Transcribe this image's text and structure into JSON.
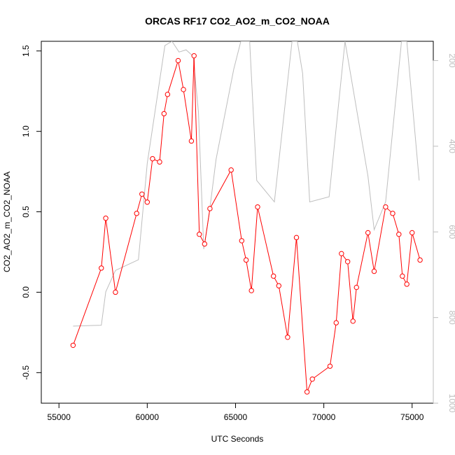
{
  "chart_data": {
    "type": "line",
    "title": "ORCAS RF17 CO2_AO2_m_CO2_NOAA",
    "xlabel": "UTC Seconds",
    "ylabel": "CO2_AO2_m_CO2_NOAA",
    "xlim": [
      54000,
      76200
    ],
    "ylim": [
      -0.69,
      1.56
    ],
    "x_ticks": [
      55000,
      60000,
      65000,
      70000,
      75000
    ],
    "y_ticks": [
      -0.5,
      0.0,
      0.5,
      1.0,
      1.5
    ],
    "y_tick_labels": [
      "-0.5",
      "0.0",
      "0.5",
      "1.0",
      "1.5"
    ],
    "y2_range": [
      1000,
      155
    ],
    "y2_ticks": [
      200,
      400,
      600,
      800,
      1000
    ],
    "colors": {
      "primary": "#ff0000",
      "secondary": "#bebebe"
    },
    "grid": false,
    "series": [
      {
        "marker": "open-circle",
        "axis": "left",
        "x": [
          55800,
          57400,
          57650,
          58200,
          59400,
          59700,
          60000,
          60300,
          60700,
          60950,
          61150,
          61750,
          62050,
          62500,
          62650,
          62950,
          63250,
          63550,
          64750,
          65350,
          65600,
          65900,
          66250,
          67150,
          67450,
          67950,
          68450,
          69050,
          69350,
          70350,
          70700,
          71000,
          71350,
          71650,
          71850,
          72500,
          72850,
          73500,
          73900,
          74250,
          74450,
          74700,
          75000,
          75450
        ],
        "y": [
          -0.33,
          0.15,
          0.46,
          0.0,
          0.49,
          0.61,
          0.56,
          0.83,
          0.81,
          1.11,
          1.23,
          1.44,
          1.26,
          0.94,
          1.47,
          0.36,
          0.3,
          0.52,
          0.76,
          0.32,
          0.2,
          0.01,
          0.53,
          0.1,
          0.04,
          -0.28,
          0.34,
          -0.62,
          -0.54,
          -0.46,
          -0.19,
          0.24,
          0.19,
          -0.18,
          0.03,
          0.37,
          0.13,
          0.53,
          0.49,
          0.36,
          0.1,
          0.05,
          0.37,
          0.2
        ]
      },
      {
        "axis": "right",
        "x": [
          55800,
          57400,
          57650,
          58200,
          59500,
          60000,
          61000,
          61400,
          61800,
          62200,
          62600,
          62900,
          63200,
          63500,
          63900,
          64900,
          65300,
          65800,
          66200,
          67200,
          68200,
          68500,
          68800,
          69200,
          70300,
          71200,
          72500,
          72850,
          73500,
          74400,
          74700,
          75400
        ],
        "y": [
          820,
          818,
          740,
          690,
          665,
          440,
          165,
          155,
          180,
          175,
          190,
          320,
          640,
          560,
          430,
          220,
          155,
          155,
          480,
          530,
          155,
          155,
          230,
          530,
          518,
          155,
          470,
          595,
          530,
          155,
          155,
          480
        ]
      }
    ]
  }
}
